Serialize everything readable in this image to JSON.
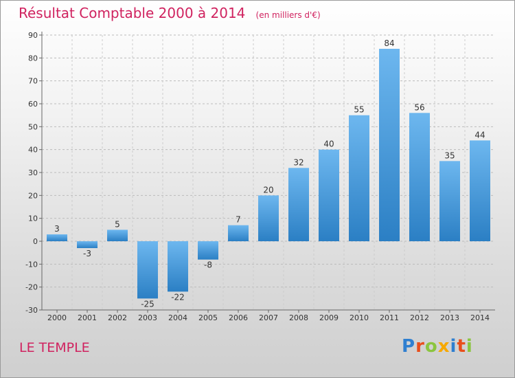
{
  "header": {
    "title": "Résultat Comptable 2000 à 2014",
    "subtitle": "(en milliers d'€)"
  },
  "footer": {
    "place": "LE TEMPLE",
    "logo_text": "Proxiti",
    "logo_colors": [
      "#2f7fd0",
      "#e94e1b",
      "#8bc53f",
      "#f7a800",
      "#2f7fd0",
      "#e94e1b",
      "#8bc53f"
    ]
  },
  "colors": {
    "title": "#d0225f",
    "bar_light": "#6db7ef",
    "bar_dark": "#2b7fc4"
  },
  "chart_data": {
    "type": "bar",
    "categories": [
      "2000",
      "2001",
      "2002",
      "2003",
      "2004",
      "2005",
      "2006",
      "2007",
      "2008",
      "2009",
      "2010",
      "2011",
      "2012",
      "2013",
      "2014"
    ],
    "values": [
      3,
      -3,
      5,
      -25,
      -22,
      -8,
      7,
      20,
      32,
      40,
      55,
      84,
      56,
      35,
      44
    ],
    "ylim": [
      -30,
      90
    ],
    "yticks": [
      -30,
      -20,
      -10,
      0,
      10,
      20,
      30,
      40,
      50,
      60,
      70,
      80,
      90
    ],
    "grid": true,
    "data_labels": true
  }
}
